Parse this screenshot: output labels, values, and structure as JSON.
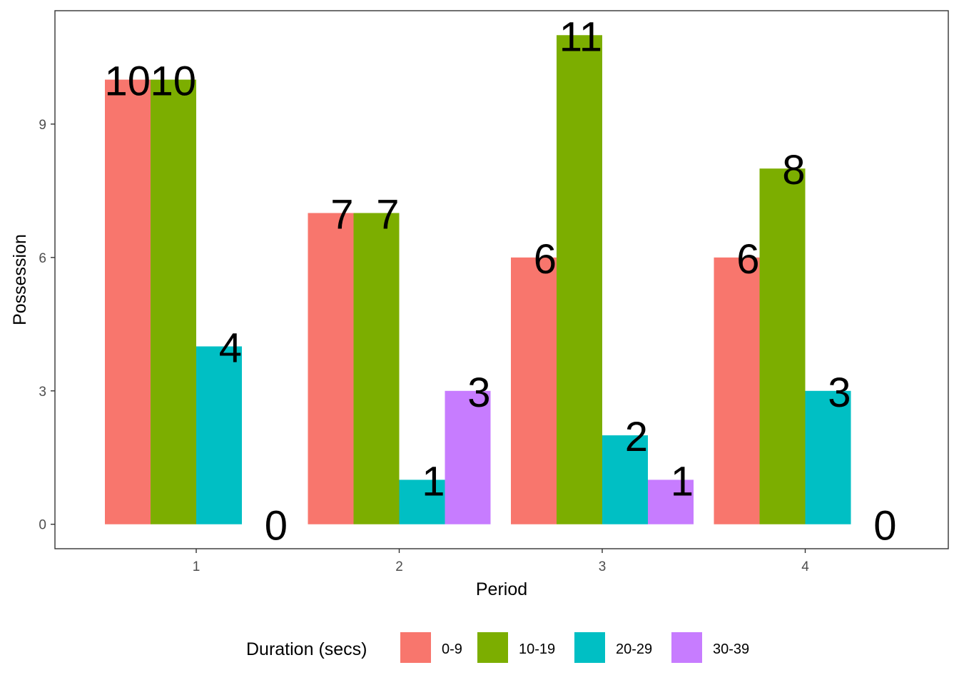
{
  "chart_data": {
    "type": "bar",
    "categories": [
      "1",
      "2",
      "3",
      "4"
    ],
    "series": [
      {
        "name": "0-9",
        "color": "#F8766D",
        "values": [
          10,
          7,
          6,
          6
        ]
      },
      {
        "name": "10-19",
        "color": "#7CAE00",
        "values": [
          10,
          7,
          11,
          8
        ]
      },
      {
        "name": "20-29",
        "color": "#00BFC4",
        "values": [
          4,
          1,
          2,
          3
        ]
      },
      {
        "name": "30-39",
        "color": "#C77CFF",
        "values": [
          0,
          3,
          1,
          0
        ]
      }
    ],
    "xlabel": "Period",
    "ylabel": "Possession",
    "yticks": [
      0,
      3,
      6,
      9
    ],
    "ylim": [
      -0.55,
      11.55
    ],
    "legend_title": "Duration (secs)",
    "legend_position": "bottom",
    "grid": false
  }
}
